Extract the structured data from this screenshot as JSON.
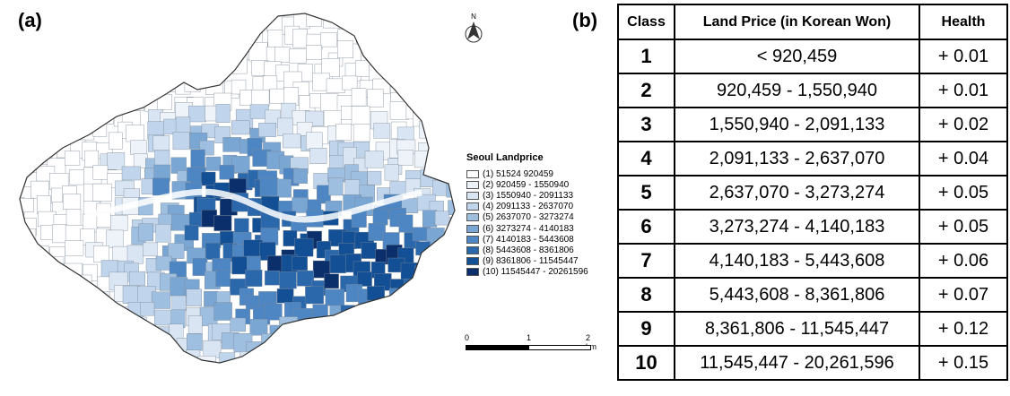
{
  "panels": {
    "a": "(a)",
    "b": "(b)"
  },
  "north_arrow": {
    "label": "N",
    "icon": "north-arrow-icon"
  },
  "legend": {
    "title": "Seoul Landprice",
    "items": [
      {
        "label": "(1) 51524   920459",
        "color": "#ffffff"
      },
      {
        "label": "(2) 920459 - 1550940",
        "color": "#eef3fa"
      },
      {
        "label": "(3) 1550940 - 2091133",
        "color": "#d9e5f3"
      },
      {
        "label": "(4) 2091133 - 2637070",
        "color": "#c0d5ec"
      },
      {
        "label": "(5) 2637070 - 3273274",
        "color": "#9fbfe0"
      },
      {
        "label": "(6) 3273274 - 4140183",
        "color": "#7aa6d3"
      },
      {
        "label": "(7) 4140183 - 5443608",
        "color": "#4d86c2"
      },
      {
        "label": "(8) 5443608 - 8361806",
        "color": "#2a67ab"
      },
      {
        "label": "(9) 8361806 - 11545447",
        "color": "#134f94"
      },
      {
        "label": "(10) 11545447 - 20261596",
        "color": "#0b2f6b"
      }
    ]
  },
  "scale_bar": {
    "labels": [
      "0",
      "1",
      "2 km"
    ]
  },
  "table": {
    "headers": [
      "Class",
      "Land Price (in Korean Won)",
      "Health"
    ],
    "rows": [
      [
        "1",
        "< 920,459",
        "+ 0.01"
      ],
      [
        "2",
        "920,459 - 1,550,940",
        "+ 0.01"
      ],
      [
        "3",
        "1,550,940 - 2,091,133",
        "+ 0.02"
      ],
      [
        "4",
        "2,091,133 - 2,637,070",
        "+ 0.04"
      ],
      [
        "5",
        "2,637,070 - 3,273,274",
        "+ 0.05"
      ],
      [
        "6",
        "3,273,274 - 4,140,183",
        "+ 0.05"
      ],
      [
        "7",
        "4,140,183 - 5,443,608",
        "+ 0.06"
      ],
      [
        "8",
        "5,443,608 - 8,361,806",
        "+ 0.07"
      ],
      [
        "9",
        "8,361,806 - 11,545,447",
        "+ 0.12"
      ],
      [
        "10",
        "11,545,447 - 20,261,596",
        "+ 0.15"
      ]
    ]
  }
}
